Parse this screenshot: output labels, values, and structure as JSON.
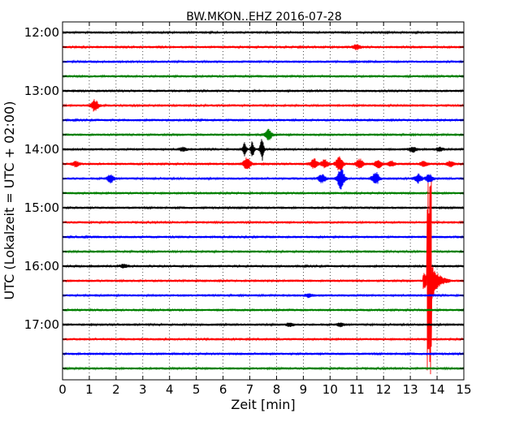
{
  "chart_data": {
    "type": "line",
    "title": "BW.MKON..EHZ 2016-07-28",
    "xlabel": "Zeit  [min]",
    "ylabel": "UTC (Lokalzeit = UTC + 02:00)",
    "xlim": [
      0,
      15
    ],
    "xticks": [
      0,
      1,
      2,
      3,
      4,
      5,
      6,
      7,
      8,
      9,
      10,
      11,
      12,
      13,
      14,
      15
    ],
    "x_tick_labels": [
      "0",
      "1",
      "2",
      "3",
      "4",
      "5",
      "6",
      "7",
      "8",
      "9",
      "10",
      "11",
      "12",
      "13",
      "14",
      "15"
    ],
    "y_tick_labels": [
      "12:00",
      "13:00",
      "14:00",
      "15:00",
      "16:00",
      "17:00"
    ],
    "grid": "vertical dotted lines at each minute",
    "trace_colors": [
      "#000000",
      "#ff0000",
      "#0000ff",
      "#008000"
    ],
    "traces": [
      {
        "start": "12:00",
        "color": "#000000",
        "events": []
      },
      {
        "start": "12:15",
        "color": "#ff0000",
        "events": [
          {
            "t": 11.0,
            "amp": 0.3,
            "kind": "burst"
          }
        ]
      },
      {
        "start": "12:30",
        "color": "#0000ff",
        "events": []
      },
      {
        "start": "12:45",
        "color": "#008000",
        "events": []
      },
      {
        "start": "13:00",
        "color": "#000000",
        "events": []
      },
      {
        "start": "13:15",
        "color": "#ff0000",
        "events": [
          {
            "t": 1.2,
            "amp": 0.7,
            "kind": "burst"
          }
        ]
      },
      {
        "start": "13:30",
        "color": "#0000ff",
        "events": []
      },
      {
        "start": "13:45",
        "color": "#008000",
        "events": [
          {
            "t": 7.7,
            "amp": 0.6,
            "kind": "burst"
          }
        ]
      },
      {
        "start": "14:00",
        "color": "#000000",
        "events": [
          {
            "t": 6.8,
            "amp": 0.8,
            "kind": "spike"
          },
          {
            "t": 7.1,
            "amp": 1.0,
            "kind": "spike"
          },
          {
            "t": 7.45,
            "amp": 1.5,
            "kind": "spike"
          },
          {
            "t": 4.5,
            "amp": 0.2,
            "kind": "burst"
          },
          {
            "t": 13.1,
            "amp": 0.3,
            "kind": "burst"
          },
          {
            "t": 14.1,
            "amp": 0.2,
            "kind": "burst"
          }
        ]
      },
      {
        "start": "14:15",
        "color": "#ff0000",
        "events": [
          {
            "t": 0.5,
            "amp": 0.3,
            "kind": "burst"
          },
          {
            "t": 6.9,
            "amp": 0.8,
            "kind": "burst"
          },
          {
            "t": 9.4,
            "amp": 0.6,
            "kind": "burst"
          },
          {
            "t": 9.8,
            "amp": 0.5,
            "kind": "burst"
          },
          {
            "t": 10.35,
            "amp": 1.0,
            "kind": "burst"
          },
          {
            "t": 11.1,
            "amp": 0.6,
            "kind": "burst"
          },
          {
            "t": 11.8,
            "amp": 0.5,
            "kind": "burst"
          },
          {
            "t": 12.3,
            "amp": 0.3,
            "kind": "burst"
          },
          {
            "t": 13.5,
            "amp": 0.3,
            "kind": "burst"
          },
          {
            "t": 14.5,
            "amp": 0.3,
            "kind": "burst"
          }
        ]
      },
      {
        "start": "14:30",
        "color": "#0000ff",
        "events": [
          {
            "t": 1.8,
            "amp": 0.5,
            "kind": "burst"
          },
          {
            "t": 9.7,
            "amp": 0.5,
            "kind": "burst"
          },
          {
            "t": 10.4,
            "amp": 1.4,
            "kind": "burst"
          },
          {
            "t": 11.7,
            "amp": 0.8,
            "kind": "burst"
          },
          {
            "t": 13.3,
            "amp": 0.5,
            "kind": "burst"
          },
          {
            "t": 13.7,
            "amp": 0.5,
            "kind": "burst"
          }
        ]
      },
      {
        "start": "14:45",
        "color": "#008000",
        "events": []
      },
      {
        "start": "15:00",
        "color": "#000000",
        "events": []
      },
      {
        "start": "15:15",
        "color": "#ff0000",
        "events": []
      },
      {
        "start": "15:30",
        "color": "#0000ff",
        "events": []
      },
      {
        "start": "15:45",
        "color": "#008000",
        "events": []
      },
      {
        "start": "16:00",
        "color": "#000000",
        "events": [
          {
            "t": 2.3,
            "amp": 0.2,
            "kind": "burst"
          }
        ]
      },
      {
        "start": "16:15",
        "color": "#ff0000",
        "events": [
          {
            "t": 13.7,
            "amp": 4.0,
            "kind": "quake"
          }
        ]
      },
      {
        "start": "16:30",
        "color": "#0000ff",
        "events": [
          {
            "t": 9.2,
            "amp": 0.2,
            "kind": "burst"
          }
        ]
      },
      {
        "start": "16:45",
        "color": "#008000",
        "events": []
      },
      {
        "start": "17:00",
        "color": "#000000",
        "events": [
          {
            "t": 8.5,
            "amp": 0.2,
            "kind": "burst"
          },
          {
            "t": 10.4,
            "amp": 0.2,
            "kind": "burst"
          }
        ]
      },
      {
        "start": "17:15",
        "color": "#ff0000",
        "events": []
      },
      {
        "start": "17:30",
        "color": "#0000ff",
        "events": []
      },
      {
        "start": "17:45",
        "color": "#008000",
        "events": []
      }
    ]
  }
}
